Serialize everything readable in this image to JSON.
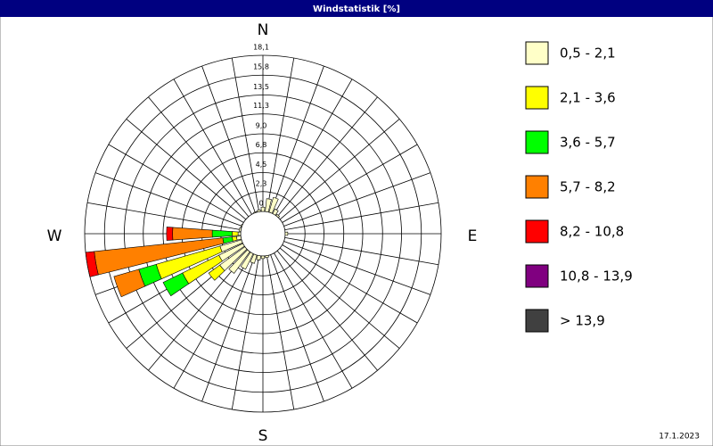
{
  "chart_data": {
    "type": "windrose",
    "title": "Windstatistik [%]",
    "footer": "17.1.2023",
    "compass_labels": [
      "N",
      "E",
      "S",
      "W"
    ],
    "x": [
      0,
      10,
      20,
      30,
      40,
      50,
      60,
      70,
      80,
      90,
      100,
      110,
      120,
      130,
      140,
      150,
      160,
      170,
      180,
      190,
      200,
      210,
      220,
      230,
      240,
      250,
      260,
      270,
      280,
      290,
      300,
      310,
      320,
      330,
      340,
      350
    ],
    "rlim": [
      0,
      18.1
    ],
    "rticks": [
      0,
      {
        "value": 2.3,
        "label": "2,3"
      },
      {
        "value": 4.5,
        "label": "4,5"
      },
      {
        "value": 6.8,
        "label": "6,8"
      },
      {
        "value": 9.0,
        "label": "9,0"
      },
      {
        "value": 11.3,
        "label": "11,3"
      },
      {
        "value": 13.5,
        "label": "13,5"
      },
      {
        "value": 15.8,
        "label": "15,8"
      },
      {
        "value": 18.1,
        "label": "18,1"
      }
    ],
    "series": [
      {
        "name": "0,5 - 2,1",
        "color": "#ffffc8",
        "values": [
          0.5,
          1.5,
          1.8,
          0.6,
          0.2,
          0,
          0,
          0,
          0,
          0.3,
          0,
          0,
          0,
          0,
          0,
          0,
          0,
          0.2,
          0.3,
          0.5,
          1.0,
          2.0,
          3.1,
          3.6,
          3.1,
          2.6,
          0.5,
          0.3,
          0.2,
          0.1,
          0,
          0,
          0,
          0,
          0.1,
          0.2
        ]
      },
      {
        "name": "2,1 - 3,6",
        "color": "#ffff00",
        "values": [
          0,
          0,
          0,
          0,
          0,
          0,
          0,
          0,
          0,
          0,
          0,
          0,
          0,
          0,
          0,
          0,
          0,
          0,
          0,
          0,
          0,
          0,
          0,
          1.6,
          4.7,
          7.7,
          0.5,
          0.7,
          0,
          0,
          0,
          0,
          0,
          0,
          0,
          0
        ]
      },
      {
        "name": "3,6 - 5,7",
        "color": "#00ff00",
        "values": [
          0,
          0,
          0,
          0,
          0,
          0,
          0,
          0,
          0,
          0,
          0,
          0,
          0,
          0,
          0,
          0,
          0,
          0,
          0,
          0,
          0,
          0,
          0,
          0,
          2.5,
          2.1,
          1.1,
          2.3,
          0,
          0,
          0,
          0,
          0,
          0,
          0,
          0
        ]
      },
      {
        "name": "5,7 - 8,2",
        "color": "#ff8000",
        "values": [
          0,
          0,
          0,
          0,
          0,
          0,
          0,
          0,
          0,
          0,
          0,
          0,
          0,
          0,
          0,
          0,
          0,
          0,
          0,
          0,
          0,
          0,
          0,
          0,
          0,
          3.0,
          15.0,
          4.6,
          0,
          0,
          0,
          0,
          0,
          0,
          0,
          0
        ]
      },
      {
        "name": "8,2 - 10,8",
        "color": "#ff0000",
        "values": [
          0,
          0,
          0,
          0,
          0,
          0,
          0,
          0,
          0,
          0,
          0,
          0,
          0,
          0,
          0,
          0,
          0,
          0,
          0,
          0,
          0,
          0,
          0,
          0,
          0,
          0,
          1.0,
          0.7,
          0,
          0,
          0,
          0,
          0,
          0,
          0,
          0
        ]
      },
      {
        "name": "10,8 - 13,9",
        "color": "#800080",
        "values": [
          0,
          0,
          0,
          0,
          0,
          0,
          0,
          0,
          0,
          0,
          0,
          0,
          0,
          0,
          0,
          0,
          0,
          0,
          0,
          0,
          0,
          0,
          0,
          0,
          0,
          0,
          0,
          0,
          0,
          0,
          0,
          0,
          0,
          0,
          0,
          0
        ]
      },
      {
        "name": "> 13,9",
        "color": "#404040",
        "values": [
          0,
          0,
          0,
          0,
          0,
          0,
          0,
          0,
          0,
          0,
          0,
          0,
          0,
          0,
          0,
          0,
          0,
          0,
          0,
          0,
          0,
          0,
          0,
          0,
          0,
          0,
          0,
          0,
          0,
          0,
          0,
          0,
          0,
          0,
          0,
          0
        ]
      }
    ]
  }
}
